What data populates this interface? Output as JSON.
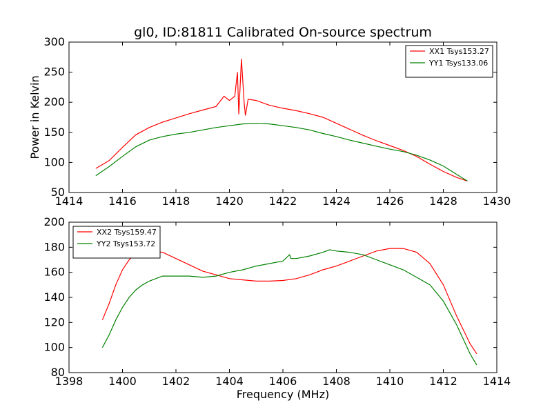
{
  "chart_data": [
    {
      "type": "line",
      "title": "gl0, ID:81811 Calibrated On-source spectrum",
      "xlabel": "",
      "ylabel": "Power in Kelvin",
      "xlim": [
        1414,
        1430
      ],
      "ylim": [
        50,
        300
      ],
      "xticks": [
        1414,
        1416,
        1418,
        1420,
        1422,
        1424,
        1426,
        1428,
        1430
      ],
      "yticks": [
        50,
        100,
        150,
        200,
        250,
        300
      ],
      "grid": false,
      "legend_position": "top-right",
      "series": [
        {
          "name": "XX1 Tsys153.27",
          "color": "#ff0000",
          "points": [
            [
              1415.0,
              90
            ],
            [
              1415.5,
              103
            ],
            [
              1416.0,
              125
            ],
            [
              1416.5,
              146
            ],
            [
              1417.0,
              158
            ],
            [
              1417.5,
              167
            ],
            [
              1418.0,
              174
            ],
            [
              1418.5,
              181
            ],
            [
              1419.0,
              187
            ],
            [
              1419.5,
              193
            ],
            [
              1419.8,
              210
            ],
            [
              1420.0,
              203
            ],
            [
              1420.2,
              210
            ],
            [
              1420.3,
              250
            ],
            [
              1420.35,
              180
            ],
            [
              1420.45,
              272
            ],
            [
              1420.55,
              200
            ],
            [
              1420.6,
              178
            ],
            [
              1420.7,
              205
            ],
            [
              1421.0,
              203
            ],
            [
              1421.5,
              195
            ],
            [
              1422.0,
              190
            ],
            [
              1422.5,
              186
            ],
            [
              1423.0,
              181
            ],
            [
              1423.5,
              175
            ],
            [
              1424.0,
              165
            ],
            [
              1424.5,
              155
            ],
            [
              1425.0,
              145
            ],
            [
              1425.5,
              136
            ],
            [
              1426.0,
              128
            ],
            [
              1426.5,
              120
            ],
            [
              1427.0,
              110
            ],
            [
              1427.5,
              97
            ],
            [
              1428.0,
              85
            ],
            [
              1428.5,
              75
            ],
            [
              1428.9,
              69
            ]
          ]
        },
        {
          "name": "YY1 Tsys133.06",
          "color": "#008000",
          "points": [
            [
              1415.0,
              78
            ],
            [
              1415.5,
              93
            ],
            [
              1416.0,
              110
            ],
            [
              1416.5,
              126
            ],
            [
              1417.0,
              137
            ],
            [
              1417.5,
              143
            ],
            [
              1418.0,
              147
            ],
            [
              1418.5,
              150
            ],
            [
              1419.0,
              154
            ],
            [
              1419.5,
              158
            ],
            [
              1420.0,
              161
            ],
            [
              1420.5,
              164
            ],
            [
              1421.0,
              165
            ],
            [
              1421.5,
              164
            ],
            [
              1422.0,
              161
            ],
            [
              1422.5,
              158
            ],
            [
              1423.0,
              154
            ],
            [
              1423.5,
              148
            ],
            [
              1424.0,
              143
            ],
            [
              1424.5,
              137
            ],
            [
              1425.0,
              132
            ],
            [
              1425.5,
              127
            ],
            [
              1426.0,
              122
            ],
            [
              1426.5,
              118
            ],
            [
              1427.0,
              112
            ],
            [
              1427.5,
              104
            ],
            [
              1428.0,
              94
            ],
            [
              1428.5,
              80
            ],
            [
              1428.9,
              69
            ]
          ]
        }
      ]
    },
    {
      "type": "line",
      "title": "",
      "xlabel": "Frequency (MHz)",
      "ylabel": "",
      "xlim": [
        1398,
        1414
      ],
      "ylim": [
        80,
        200
      ],
      "xticks": [
        1398,
        1400,
        1402,
        1404,
        1406,
        1408,
        1410,
        1412,
        1414
      ],
      "yticks": [
        80,
        100,
        120,
        140,
        160,
        180,
        200
      ],
      "grid": false,
      "legend_position": "top-left",
      "series": [
        {
          "name": "XX2 Tsys159.47",
          "color": "#ff0000",
          "points": [
            [
              1399.25,
              122
            ],
            [
              1399.5,
              135
            ],
            [
              1399.75,
              150
            ],
            [
              1400.0,
              162
            ],
            [
              1400.25,
              170
            ],
            [
              1400.5,
              175
            ],
            [
              1400.75,
              177
            ],
            [
              1401.0,
              177
            ],
            [
              1401.5,
              176
            ],
            [
              1402.0,
              171
            ],
            [
              1402.5,
              166
            ],
            [
              1403.0,
              161
            ],
            [
              1403.5,
              158
            ],
            [
              1404.0,
              155
            ],
            [
              1404.5,
              154
            ],
            [
              1405.0,
              153
            ],
            [
              1405.5,
              153
            ],
            [
              1406.0,
              153.5
            ],
            [
              1406.5,
              155
            ],
            [
              1407.0,
              158
            ],
            [
              1407.5,
              162
            ],
            [
              1408.0,
              165
            ],
            [
              1408.5,
              169
            ],
            [
              1409.0,
              173
            ],
            [
              1409.5,
              177
            ],
            [
              1410.0,
              179
            ],
            [
              1410.5,
              179
            ],
            [
              1411.0,
              176
            ],
            [
              1411.5,
              167
            ],
            [
              1412.0,
              150
            ],
            [
              1412.5,
              125
            ],
            [
              1413.0,
              103
            ],
            [
              1413.25,
              95
            ]
          ]
        },
        {
          "name": "YY2 Tsys153.72",
          "color": "#008000",
          "points": [
            [
              1399.25,
              100
            ],
            [
              1399.5,
              110
            ],
            [
              1399.75,
              122
            ],
            [
              1400.0,
              132
            ],
            [
              1400.25,
              140
            ],
            [
              1400.5,
              146
            ],
            [
              1400.75,
              150
            ],
            [
              1401.0,
              153
            ],
            [
              1401.5,
              157
            ],
            [
              1402.0,
              157
            ],
            [
              1402.5,
              157
            ],
            [
              1403.0,
              156
            ],
            [
              1403.5,
              157
            ],
            [
              1404.0,
              160
            ],
            [
              1404.5,
              162
            ],
            [
              1405.0,
              165
            ],
            [
              1405.5,
              167
            ],
            [
              1406.0,
              169
            ],
            [
              1406.25,
              174
            ],
            [
              1406.3,
              171
            ],
            [
              1406.5,
              171
            ],
            [
              1407.0,
              173
            ],
            [
              1407.5,
              176
            ],
            [
              1407.75,
              178
            ],
            [
              1408.0,
              177
            ],
            [
              1408.5,
              176
            ],
            [
              1409.0,
              174
            ],
            [
              1409.5,
              170
            ],
            [
              1410.0,
              166
            ],
            [
              1410.5,
              162
            ],
            [
              1411.0,
              156
            ],
            [
              1411.5,
              150
            ],
            [
              1412.0,
              137
            ],
            [
              1412.5,
              118
            ],
            [
              1413.0,
              95
            ],
            [
              1413.25,
              86
            ]
          ]
        }
      ]
    }
  ]
}
